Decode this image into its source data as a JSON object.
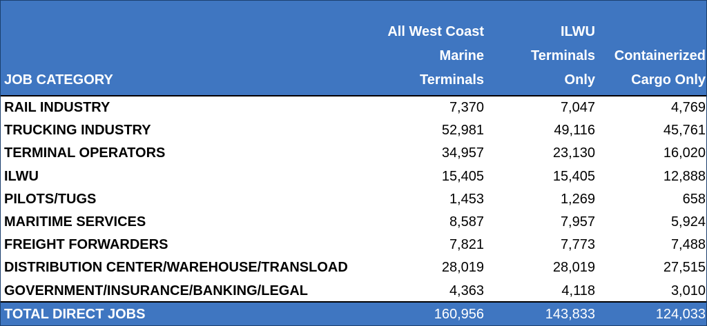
{
  "header": {
    "category": "JOB CATEGORY",
    "col1": "All West Coast\nMarine\nTerminals",
    "col2": "ILWU\nTerminals\nOnly",
    "col3": "Containerized\nCargo Only"
  },
  "rows": [
    {
      "category": "RAIL INDUSTRY",
      "all": "7,370",
      "ilwu": "7,047",
      "containerized": "4,769"
    },
    {
      "category": "TRUCKING INDUSTRY",
      "all": "52,981",
      "ilwu": "49,116",
      "containerized": "45,761"
    },
    {
      "category": "TERMINAL OPERATORS",
      "all": "34,957",
      "ilwu": "23,130",
      "containerized": "16,020"
    },
    {
      "category": "ILWU",
      "all": "15,405",
      "ilwu": "15,405",
      "containerized": "12,888"
    },
    {
      "category": "PILOTS/TUGS",
      "all": "1,453",
      "ilwu": "1,269",
      "containerized": "658"
    },
    {
      "category": "MARITIME SERVICES",
      "all": "8,587",
      "ilwu": "7,957",
      "containerized": "5,924"
    },
    {
      "category": "FREIGHT FORWARDERS",
      "all": "7,821",
      "ilwu": "7,773",
      "containerized": "7,488"
    },
    {
      "category": "DISTRIBUTION CENTER/WAREHOUSE/TRANSLOAD",
      "all": "28,019",
      "ilwu": "28,019",
      "containerized": "27,515"
    },
    {
      "category": "GOVERNMENT/INSURANCE/BANKING/LEGAL",
      "all": "4,363",
      "ilwu": "4,118",
      "containerized": "3,010"
    }
  ],
  "total": {
    "category": "TOTAL DIRECT JOBS",
    "all": "160,956",
    "ilwu": "143,833",
    "containerized": "124,033"
  },
  "colors": {
    "header_bg": "#3f76c1",
    "header_text": "#ffffff"
  }
}
